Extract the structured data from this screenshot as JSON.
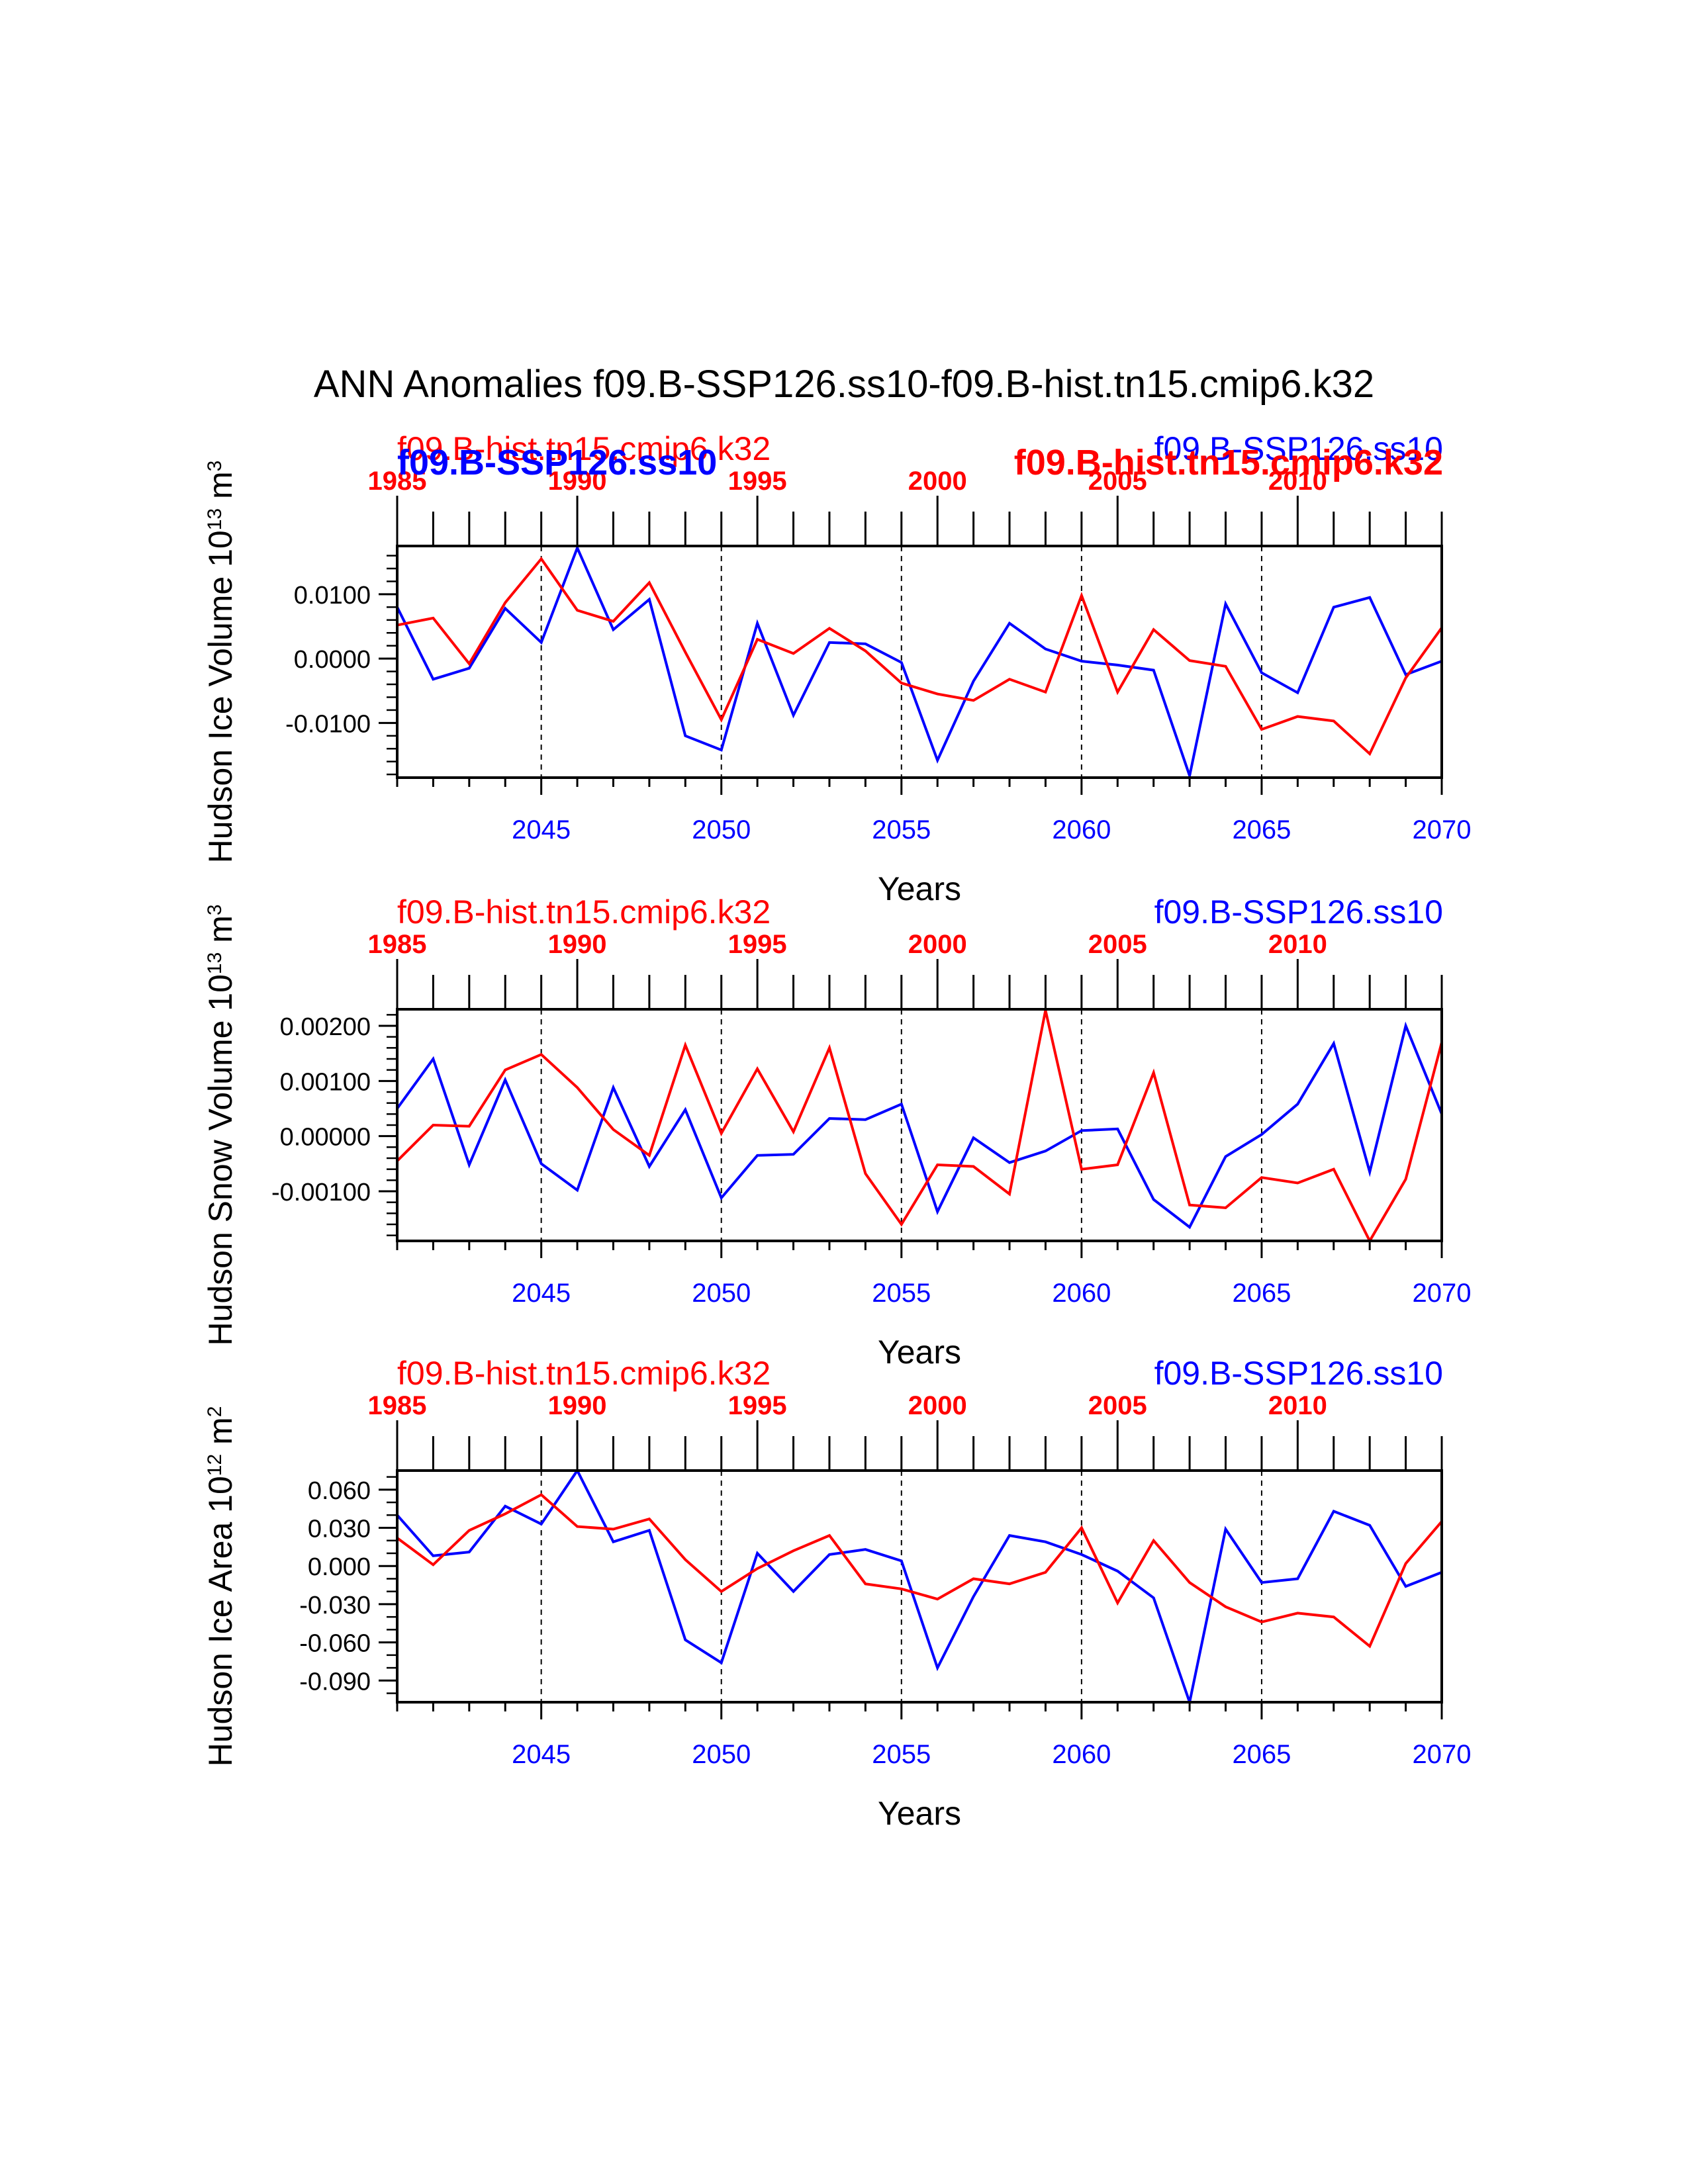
{
  "figure": {
    "title": "ANN Anomalies f09.B-SSP126.ss10-f09.B-hist.tn15.cmip6.k32",
    "colors": {
      "ssp": "#0000ff",
      "hist": "#ff0000",
      "axis": "#000000",
      "background": "#ffffff"
    }
  },
  "chart_data": [
    {
      "type": "line",
      "ylabel": "Hudson Ice Volume 10^13 m^3",
      "xlabel": "Years",
      "bottom_axis": {
        "ticks": [
          2045,
          2050,
          2055,
          2060,
          2065,
          2070
        ],
        "range": [
          2041,
          2070
        ]
      },
      "top_axis": {
        "ticks": [
          1985,
          1990,
          1995,
          2000,
          2005,
          2010
        ],
        "range": [
          1985,
          2014
        ]
      },
      "ylim": [
        -0.0185,
        0.0175
      ],
      "yticks": [
        -0.01,
        0.0,
        0.01
      ],
      "yticklabels": [
        "-0.0100",
        "0.0000",
        "0.0100"
      ],
      "yminor_step": 0.002,
      "vlines": [
        2045,
        2050,
        2055,
        2060,
        2065
      ],
      "legend_labels": [
        {
          "text": "f09.B-hist.tn15.cmip6.k32",
          "position": "top-left",
          "color": "#ff0000",
          "bold": false
        },
        {
          "text": "f09.B-SSP126.ss10",
          "position": "top-left",
          "color": "#0000ff",
          "bold": true
        },
        {
          "text": "f09.B-SSP126.ss10",
          "position": "top-right",
          "color": "#0000ff",
          "bold": false
        },
        {
          "text": "f09.B-hist.tn15.cmip6.k32",
          "position": "top-right",
          "color": "#ff0000",
          "bold": true
        }
      ],
      "series": [
        {
          "name": "f09.B-SSP126.ss10",
          "color": "#0000ff",
          "axis": "bottom",
          "x_start": 2041,
          "values": [
            0.008,
            -0.0032,
            -0.0015,
            0.0078,
            0.0025,
            0.0172,
            0.0045,
            0.0092,
            -0.012,
            -0.0142,
            0.0055,
            -0.0088,
            0.0025,
            0.0023,
            -0.0006,
            -0.0158,
            -0.0035,
            0.0055,
            0.0015,
            -0.0004,
            -0.001,
            -0.0018,
            -0.0182,
            0.0085,
            -0.0022,
            -0.0053,
            0.008,
            0.0095,
            -0.0025,
            -0.0004
          ]
        },
        {
          "name": "f09.B-hist.tn15.cmip6.k32",
          "color": "#ff0000",
          "axis": "top",
          "x_start": 1985,
          "values": [
            0.0052,
            0.0063,
            -0.0008,
            0.0087,
            0.0155,
            0.0075,
            0.0058,
            0.0118,
            0.001,
            -0.0095,
            0.003,
            0.0008,
            0.0047,
            0.0012,
            -0.0038,
            -0.0055,
            -0.0065,
            -0.0032,
            -0.0052,
            0.0098,
            -0.0052,
            0.0045,
            -0.0003,
            -0.0012,
            -0.011,
            -0.009,
            -0.0097,
            -0.0148,
            -0.003,
            0.0048
          ]
        }
      ]
    },
    {
      "type": "line",
      "ylabel": "Hudson Snow Volume 10^13 m^3",
      "xlabel": "Years",
      "bottom_axis": {
        "ticks": [
          2045,
          2050,
          2055,
          2060,
          2065,
          2070
        ],
        "range": [
          2041,
          2070
        ]
      },
      "top_axis": {
        "ticks": [
          1985,
          1990,
          1995,
          2000,
          2005,
          2010
        ],
        "range": [
          1985,
          2014
        ]
      },
      "ylim": [
        -0.0019,
        0.0023
      ],
      "yticks": [
        -0.001,
        0.0,
        0.001,
        0.002
      ],
      "yticklabels": [
        "-0.00100",
        "0.00000",
        "0.00100",
        "0.00200"
      ],
      "yminor_step": 0.0002,
      "vlines": [
        2045,
        2050,
        2055,
        2060,
        2065
      ],
      "legend_labels": [
        {
          "text": "f09.B-hist.tn15.cmip6.k32",
          "position": "top-left",
          "color": "#ff0000",
          "bold": false
        },
        {
          "text": "f09.B-SSP126.ss10",
          "position": "top-right",
          "color": "#0000ff",
          "bold": false
        }
      ],
      "series": [
        {
          "name": "f09.B-SSP126.ss10",
          "color": "#0000ff",
          "axis": "bottom",
          "x_start": 2041,
          "values": [
            0.0005,
            0.0014,
            -0.00052,
            0.00102,
            -0.0005,
            -0.00098,
            0.00088,
            -0.00055,
            0.00048,
            -0.00112,
            -0.00035,
            -0.00033,
            0.00032,
            0.0003,
            0.00058,
            -0.00137,
            -3e-05,
            -0.00048,
            -0.00027,
            0.0001,
            0.00013,
            -0.00115,
            -0.00165,
            -0.00037,
            3e-05,
            0.00058,
            0.00168,
            -0.00065,
            0.002,
            0.0004
          ]
        },
        {
          "name": "f09.B-hist.tn15.cmip6.k32",
          "color": "#ff0000",
          "axis": "top",
          "x_start": 1985,
          "values": [
            -0.00045,
            0.0002,
            0.00018,
            0.0012,
            0.00148,
            0.00088,
            0.00012,
            -0.00035,
            0.00165,
            5e-05,
            0.00122,
            8e-05,
            0.0016,
            -0.00068,
            -0.0016,
            -0.00052,
            -0.00055,
            -0.00105,
            0.00228,
            -0.0006,
            -0.00052,
            0.00115,
            -0.00125,
            -0.0013,
            -0.00075,
            -0.00085,
            -0.0006,
            -0.0019,
            -0.00078,
            0.0017
          ]
        }
      ]
    },
    {
      "type": "line",
      "ylabel": "Hudson Ice Area 10^12 m^2",
      "xlabel": "Years",
      "bottom_axis": {
        "ticks": [
          2045,
          2050,
          2055,
          2060,
          2065,
          2070
        ],
        "range": [
          2041,
          2070
        ]
      },
      "top_axis": {
        "ticks": [
          1985,
          1990,
          1995,
          2000,
          2005,
          2010
        ],
        "range": [
          1985,
          2014
        ]
      },
      "ylim": [
        -0.107,
        0.075
      ],
      "yticks": [
        -0.09,
        -0.06,
        -0.03,
        0.0,
        0.03,
        0.06
      ],
      "yticklabels": [
        "-0.090",
        "-0.060",
        "-0.030",
        "0.000",
        "0.030",
        "0.060"
      ],
      "yminor_step": 0.01,
      "vlines": [
        2045,
        2050,
        2055,
        2060,
        2065
      ],
      "legend_labels": [
        {
          "text": "f09.B-hist.tn15.cmip6.k32",
          "position": "top-left",
          "color": "#ff0000",
          "bold": false
        },
        {
          "text": "f09.B-SSP126.ss10",
          "position": "top-right",
          "color": "#0000ff",
          "bold": false
        }
      ],
      "series": [
        {
          "name": "f09.B-SSP126.ss10",
          "color": "#0000ff",
          "axis": "bottom",
          "x_start": 2041,
          "values": [
            0.04,
            0.008,
            0.011,
            0.047,
            0.033,
            0.075,
            0.019,
            0.028,
            -0.058,
            -0.076,
            0.01,
            -0.02,
            0.009,
            0.013,
            0.004,
            -0.08,
            -0.024,
            0.024,
            0.019,
            0.009,
            -0.004,
            -0.025,
            -0.107,
            0.029,
            -0.013,
            -0.01,
            0.043,
            0.032,
            -0.016,
            -0.005
          ]
        },
        {
          "name": "f09.B-hist.tn15.cmip6.k32",
          "color": "#ff0000",
          "axis": "top",
          "x_start": 1985,
          "values": [
            0.022,
            0.001,
            0.028,
            0.041,
            0.056,
            0.031,
            0.029,
            0.037,
            0.005,
            -0.02,
            -0.002,
            0.012,
            0.024,
            -0.014,
            -0.018,
            -0.026,
            -0.01,
            -0.014,
            -0.005,
            0.03,
            -0.029,
            0.02,
            -0.013,
            -0.032,
            -0.044,
            -0.037,
            -0.04,
            -0.063,
            0.002,
            0.035
          ]
        }
      ]
    }
  ]
}
